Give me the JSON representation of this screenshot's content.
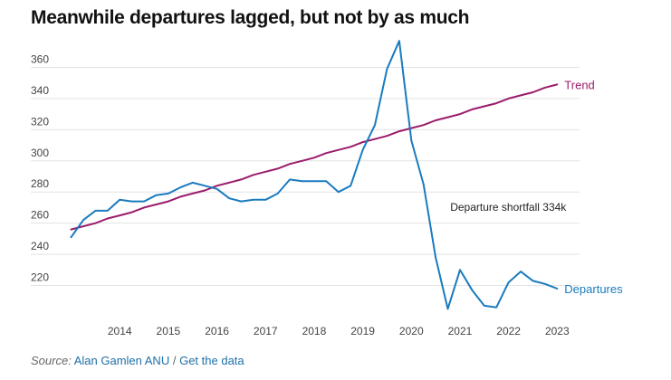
{
  "title": "Meanwhile departures lagged, but not by as much",
  "source": {
    "label": "Source:",
    "author": "Alan Gamlen ANU",
    "separator": "/",
    "link": "Get the data"
  },
  "colors": {
    "trend": "#9b1c6c",
    "departures": "#1a7bbf",
    "grid": "#e3e3e3",
    "axis_text": "#444444"
  },
  "chart_data": {
    "type": "line",
    "title": "Meanwhile departures lagged, but not by as much",
    "xlabel": "",
    "ylabel": "",
    "ylim": [
      200,
      380
    ],
    "xlim": [
      2013.08,
      2023.96
    ],
    "yticks": [
      220,
      240,
      260,
      280,
      300,
      320,
      340,
      360
    ],
    "xticks": [
      2014,
      2015,
      2016,
      2017,
      2018,
      2019,
      2020,
      2021,
      2022,
      2023
    ],
    "grid": true,
    "legend": "inline-right",
    "annotations": [
      {
        "text": "Departure shortfall 334k",
        "x": 2021.3,
        "y": 268
      }
    ],
    "series": [
      {
        "name": "Trend",
        "color": "#9b1c6c",
        "x": [
          2013.5,
          2013.75,
          2014.0,
          2014.25,
          2014.5,
          2014.75,
          2015.0,
          2015.25,
          2015.5,
          2015.75,
          2016.0,
          2016.25,
          2016.5,
          2016.75,
          2017.0,
          2017.25,
          2017.5,
          2017.75,
          2018.0,
          2018.25,
          2018.5,
          2018.75,
          2019.0,
          2019.25,
          2019.5,
          2019.75,
          2020.0,
          2020.25,
          2020.5,
          2020.75,
          2021.0,
          2021.25,
          2021.5,
          2021.75,
          2022.0,
          2022.25,
          2022.5,
          2022.75,
          2023.0,
          2023.25,
          2023.5
        ],
        "values": [
          256,
          258,
          260,
          263,
          265,
          267,
          270,
          272,
          274,
          277,
          279,
          281,
          284,
          286,
          288,
          291,
          293,
          295,
          298,
          300,
          302,
          305,
          307,
          309,
          312,
          314,
          316,
          319,
          321,
          323,
          326,
          328,
          330,
          333,
          335,
          337,
          340,
          342,
          344,
          347,
          349
        ]
      },
      {
        "name": "Departures",
        "color": "#1a7bbf",
        "x": [
          2013.5,
          2013.75,
          2014.0,
          2014.25,
          2014.5,
          2014.75,
          2015.0,
          2015.25,
          2015.5,
          2015.75,
          2016.0,
          2016.25,
          2016.5,
          2016.75,
          2017.0,
          2017.25,
          2017.5,
          2017.75,
          2018.0,
          2018.25,
          2018.5,
          2018.75,
          2019.0,
          2019.25,
          2019.5,
          2019.75,
          2020.0,
          2020.25,
          2020.5,
          2020.75,
          2021.0,
          2021.25,
          2021.5,
          2021.75,
          2022.0,
          2022.25,
          2022.5,
          2022.75,
          2023.0,
          2023.25,
          2023.5
        ],
        "values": [
          251,
          262,
          268,
          268,
          275,
          274,
          274,
          278,
          279,
          283,
          286,
          284,
          282,
          276,
          274,
          275,
          275,
          279,
          288,
          287,
          287,
          287,
          280,
          284,
          307,
          323,
          359,
          377,
          313,
          285,
          238,
          205,
          230,
          217,
          207,
          206,
          222,
          229,
          223,
          221,
          218
        ]
      }
    ]
  }
}
